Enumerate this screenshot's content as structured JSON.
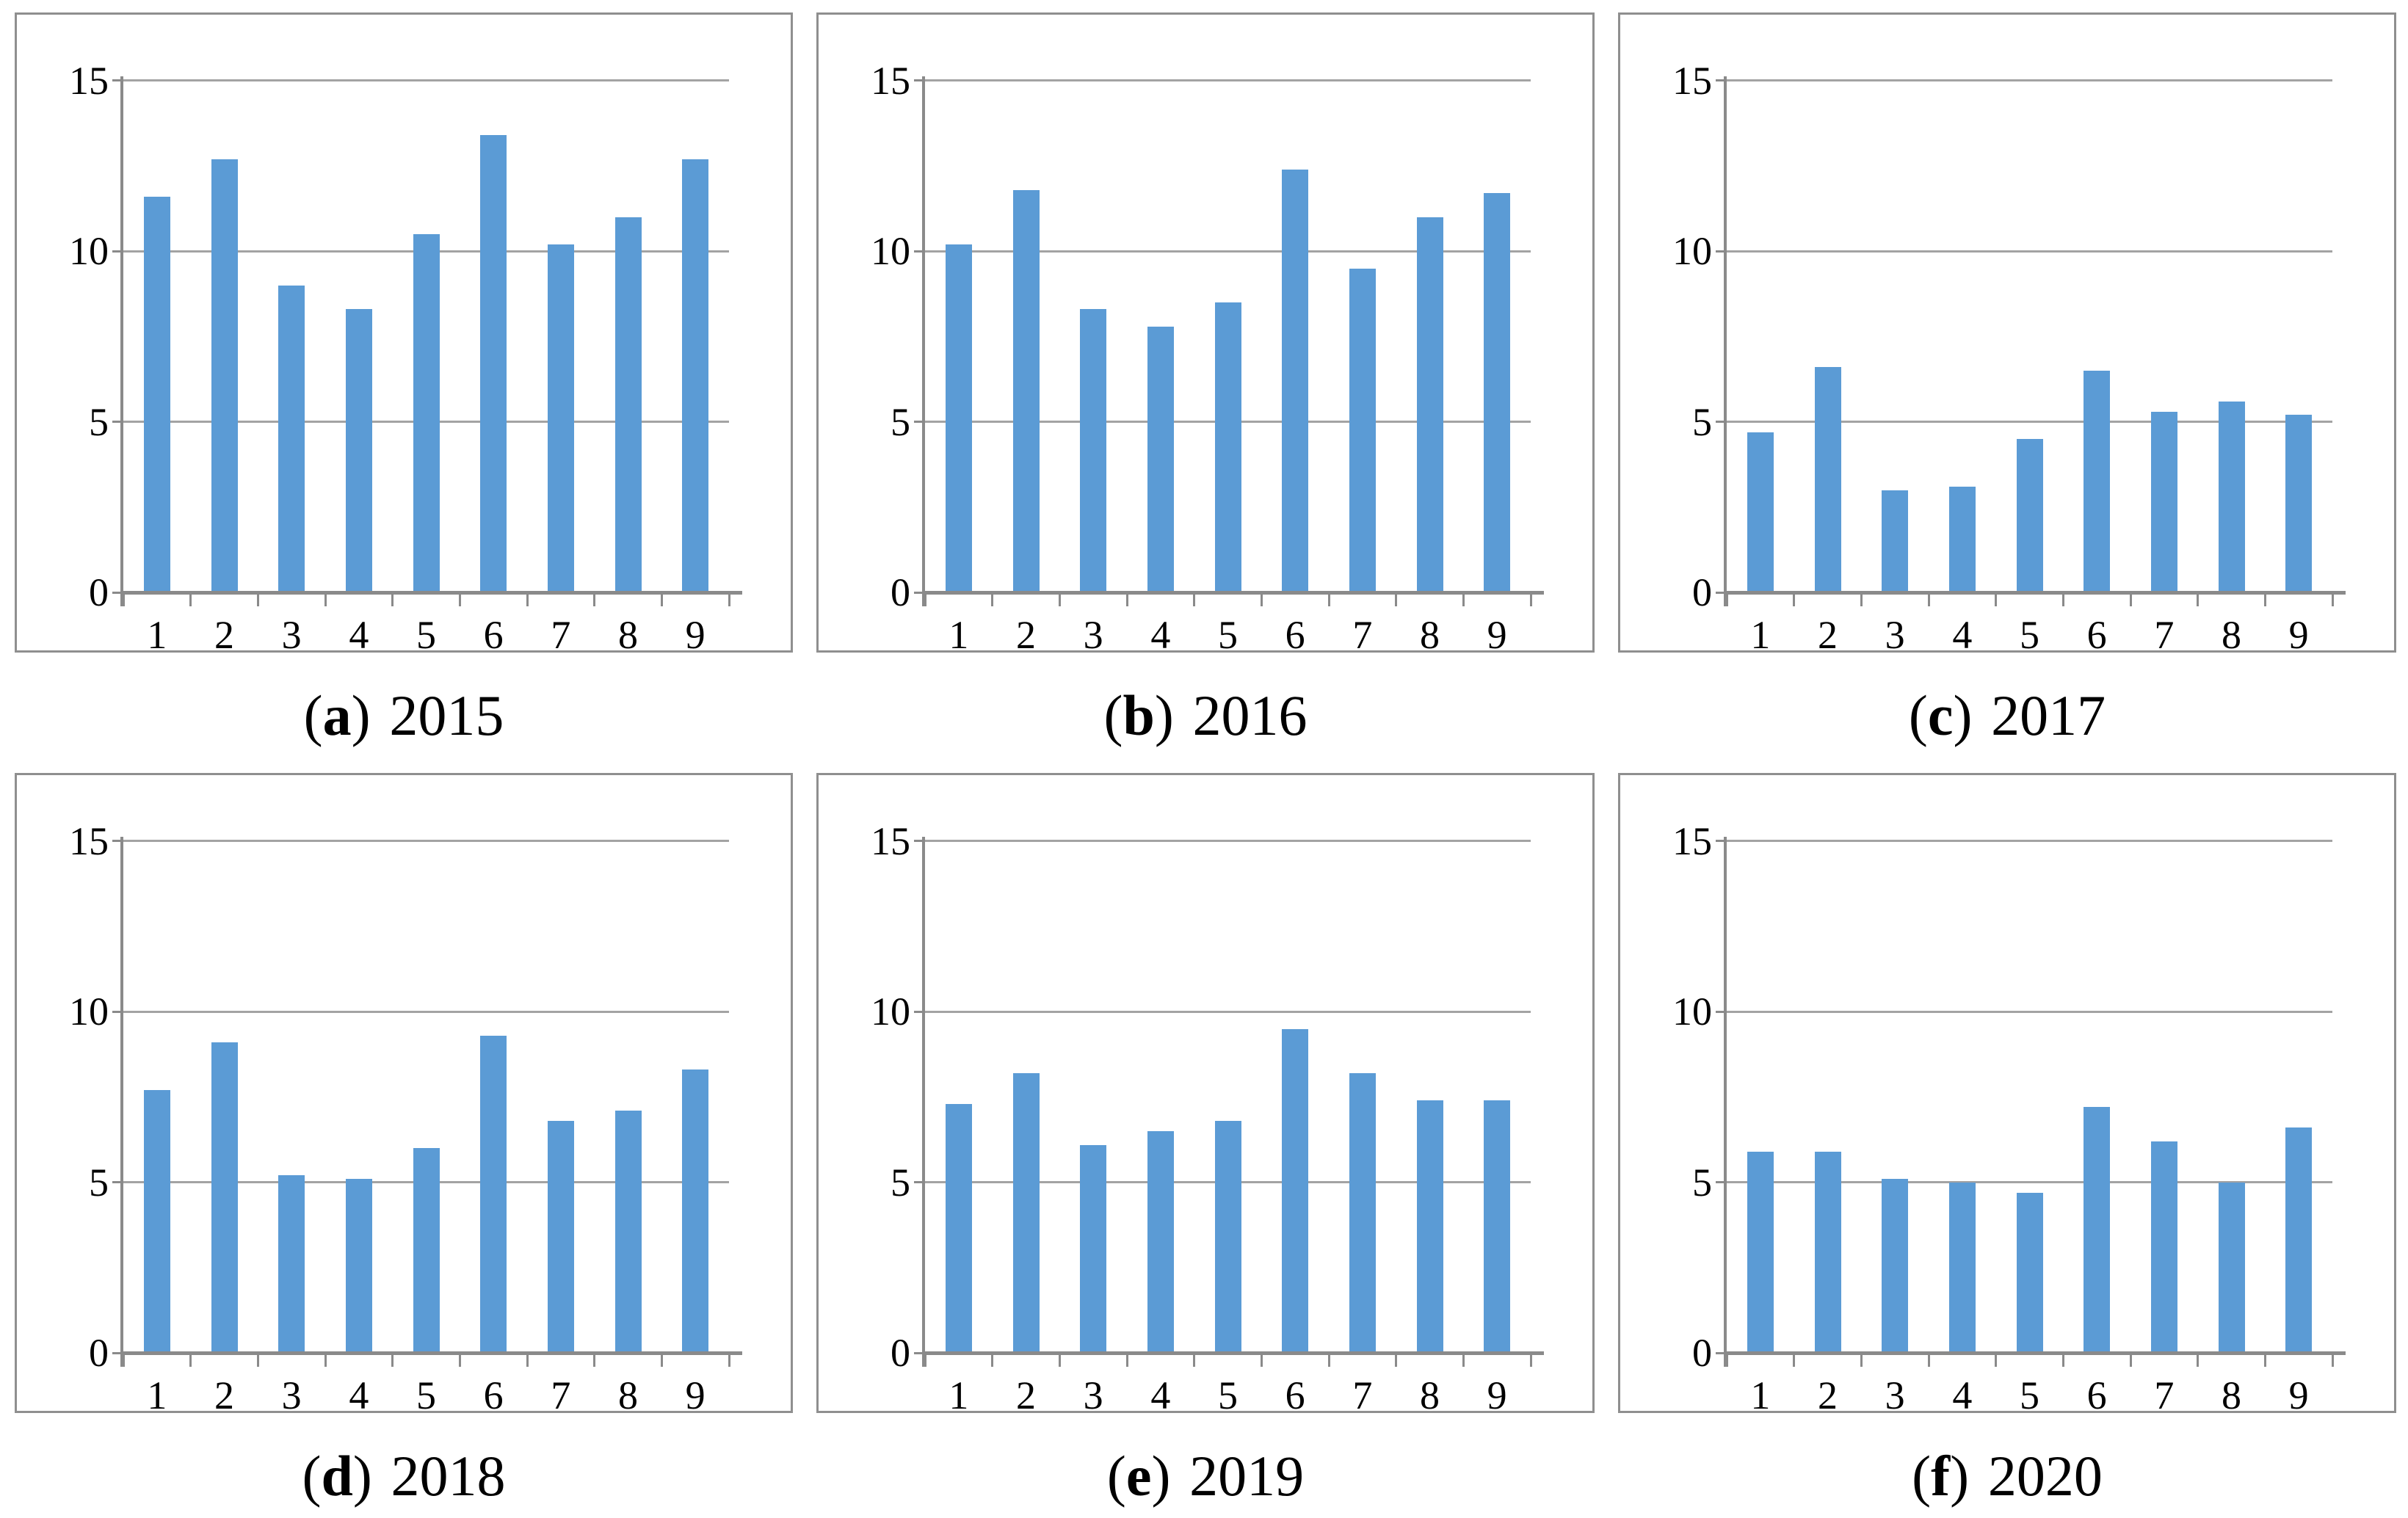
{
  "figure": {
    "style": {
      "bar_color": "#5B9BD5",
      "grid_color": "#a3a3a3",
      "axis_color": "#8a8a8a",
      "panel_border_color": "#8f8f8f",
      "text_color": "#000000",
      "background": "#ffffff"
    }
  },
  "chart_data": [
    {
      "type": "bar",
      "panel": "a",
      "caption": {
        "open": "(",
        "letter": "a",
        "close": ")",
        "year": "2015"
      },
      "categories": [
        "1",
        "2",
        "3",
        "4",
        "5",
        "6",
        "7",
        "8",
        "9"
      ],
      "values": [
        11.6,
        12.7,
        9.0,
        8.3,
        10.5,
        13.4,
        10.2,
        11.0,
        12.7
      ],
      "title": "(a) 2015",
      "xlabel": "",
      "ylabel": "",
      "ylim": [
        0,
        15
      ],
      "yticks": [
        0,
        5,
        10,
        15
      ],
      "grid": "horizontal",
      "legend": "none"
    },
    {
      "type": "bar",
      "panel": "b",
      "caption": {
        "open": "(",
        "letter": "b",
        "close": ")",
        "year": "2016"
      },
      "categories": [
        "1",
        "2",
        "3",
        "4",
        "5",
        "6",
        "7",
        "8",
        "9"
      ],
      "values": [
        10.2,
        11.8,
        8.3,
        7.8,
        8.5,
        12.4,
        9.5,
        11.0,
        11.7
      ],
      "title": "(b) 2016",
      "xlabel": "",
      "ylabel": "",
      "ylim": [
        0,
        15
      ],
      "yticks": [
        0,
        5,
        10,
        15
      ],
      "grid": "horizontal",
      "legend": "none"
    },
    {
      "type": "bar",
      "panel": "c",
      "caption": {
        "open": "(",
        "letter": "c",
        "close": ")",
        "year": "2017"
      },
      "categories": [
        "1",
        "2",
        "3",
        "4",
        "5",
        "6",
        "7",
        "8",
        "9"
      ],
      "values": [
        4.7,
        6.6,
        3.0,
        3.1,
        4.5,
        6.5,
        5.3,
        5.6,
        5.2
      ],
      "title": "(c) 2017",
      "xlabel": "",
      "ylabel": "",
      "ylim": [
        0,
        15
      ],
      "yticks": [
        0,
        5,
        10,
        15
      ],
      "grid": "horizontal",
      "legend": "none"
    },
    {
      "type": "bar",
      "panel": "d",
      "caption": {
        "open": "(",
        "letter": "d",
        "close": ")",
        "year": "2018"
      },
      "categories": [
        "1",
        "2",
        "3",
        "4",
        "5",
        "6",
        "7",
        "8",
        "9"
      ],
      "values": [
        7.7,
        9.1,
        5.2,
        5.1,
        6.0,
        9.3,
        6.8,
        7.1,
        8.3
      ],
      "title": "(d) 2018",
      "xlabel": "",
      "ylabel": "",
      "ylim": [
        0,
        15
      ],
      "yticks": [
        0,
        5,
        10,
        15
      ],
      "grid": "horizontal",
      "legend": "none"
    },
    {
      "type": "bar",
      "panel": "e",
      "caption": {
        "open": "(",
        "letter": "e",
        "close": ")",
        "year": "2019"
      },
      "categories": [
        "1",
        "2",
        "3",
        "4",
        "5",
        "6",
        "7",
        "8",
        "9"
      ],
      "values": [
        7.3,
        8.2,
        6.1,
        6.5,
        6.8,
        9.5,
        8.2,
        7.4,
        7.4
      ],
      "title": "(e) 2019",
      "xlabel": "",
      "ylabel": "",
      "ylim": [
        0,
        15
      ],
      "yticks": [
        0,
        5,
        10,
        15
      ],
      "grid": "horizontal",
      "legend": "none"
    },
    {
      "type": "bar",
      "panel": "f",
      "caption": {
        "open": "(",
        "letter": "f",
        "close": ")",
        "year": "2020"
      },
      "categories": [
        "1",
        "2",
        "3",
        "4",
        "5",
        "6",
        "7",
        "8",
        "9"
      ],
      "values": [
        5.9,
        5.9,
        5.1,
        5.0,
        4.7,
        7.2,
        6.2,
        5.0,
        6.6
      ],
      "title": "(f) 2020",
      "xlabel": "",
      "ylabel": "",
      "ylim": [
        0,
        15
      ],
      "yticks": [
        0,
        5,
        10,
        15
      ],
      "grid": "horizontal",
      "legend": "none"
    }
  ]
}
